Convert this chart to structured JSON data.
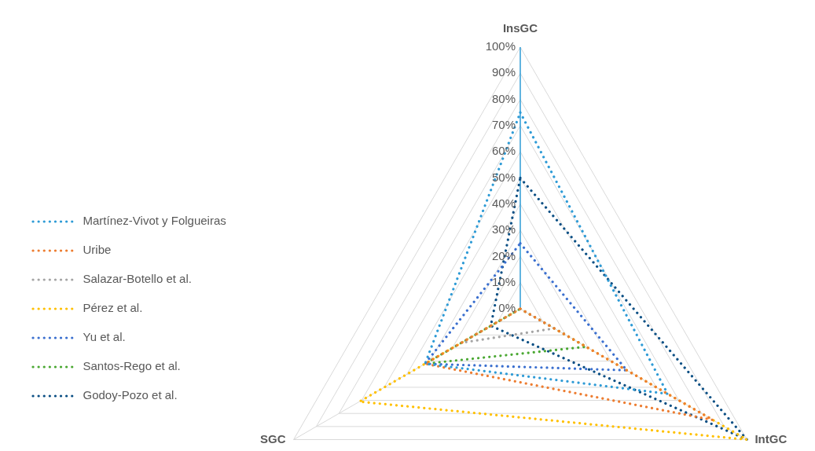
{
  "chart_data": {
    "type": "radar",
    "categories": [
      "InsGC",
      "IntGC",
      "SGC"
    ],
    "series": [
      {
        "name": "Martínez-Vivot y Folgueiras",
        "color": "#2e9bd6",
        "values": [
          75,
          65,
          42
        ]
      },
      {
        "name": "Uribe",
        "color": "#ed7d31",
        "values": [
          0,
          85,
          42
        ]
      },
      {
        "name": "Salazar-Botello et al.",
        "color": "#a5a5a5",
        "values": [
          0,
          15,
          26
        ]
      },
      {
        "name": "Pérez et al.",
        "color": "#ffc000",
        "values": [
          0,
          100,
          71
        ]
      },
      {
        "name": "Yu et al.",
        "color": "#3a6fcf",
        "values": [
          25,
          47,
          42
        ]
      },
      {
        "name": "Santos-Rego et al.",
        "color": "#4aa832",
        "values": [
          0,
          29,
          42
        ]
      },
      {
        "name": "Godoy-Pozo et al.",
        "color": "#0b4f84",
        "values": [
          50,
          100,
          13
        ]
      }
    ],
    "ylim": [
      0,
      100
    ],
    "yticks": [
      {
        "value": 0,
        "label": "0%"
      },
      {
        "value": 10,
        "label": "10%"
      },
      {
        "value": 20,
        "label": "20%"
      },
      {
        "value": 30,
        "label": "30%"
      },
      {
        "value": 40,
        "label": "40%"
      },
      {
        "value": 50,
        "label": "50%"
      },
      {
        "value": 60,
        "label": "60%"
      },
      {
        "value": 70,
        "label": "70%"
      },
      {
        "value": 80,
        "label": "80%"
      },
      {
        "value": 90,
        "label": "90%"
      },
      {
        "value": 100,
        "label": "100%"
      }
    ],
    "grid": true,
    "legend": "left",
    "line_style": "dotted",
    "marker": "none"
  }
}
